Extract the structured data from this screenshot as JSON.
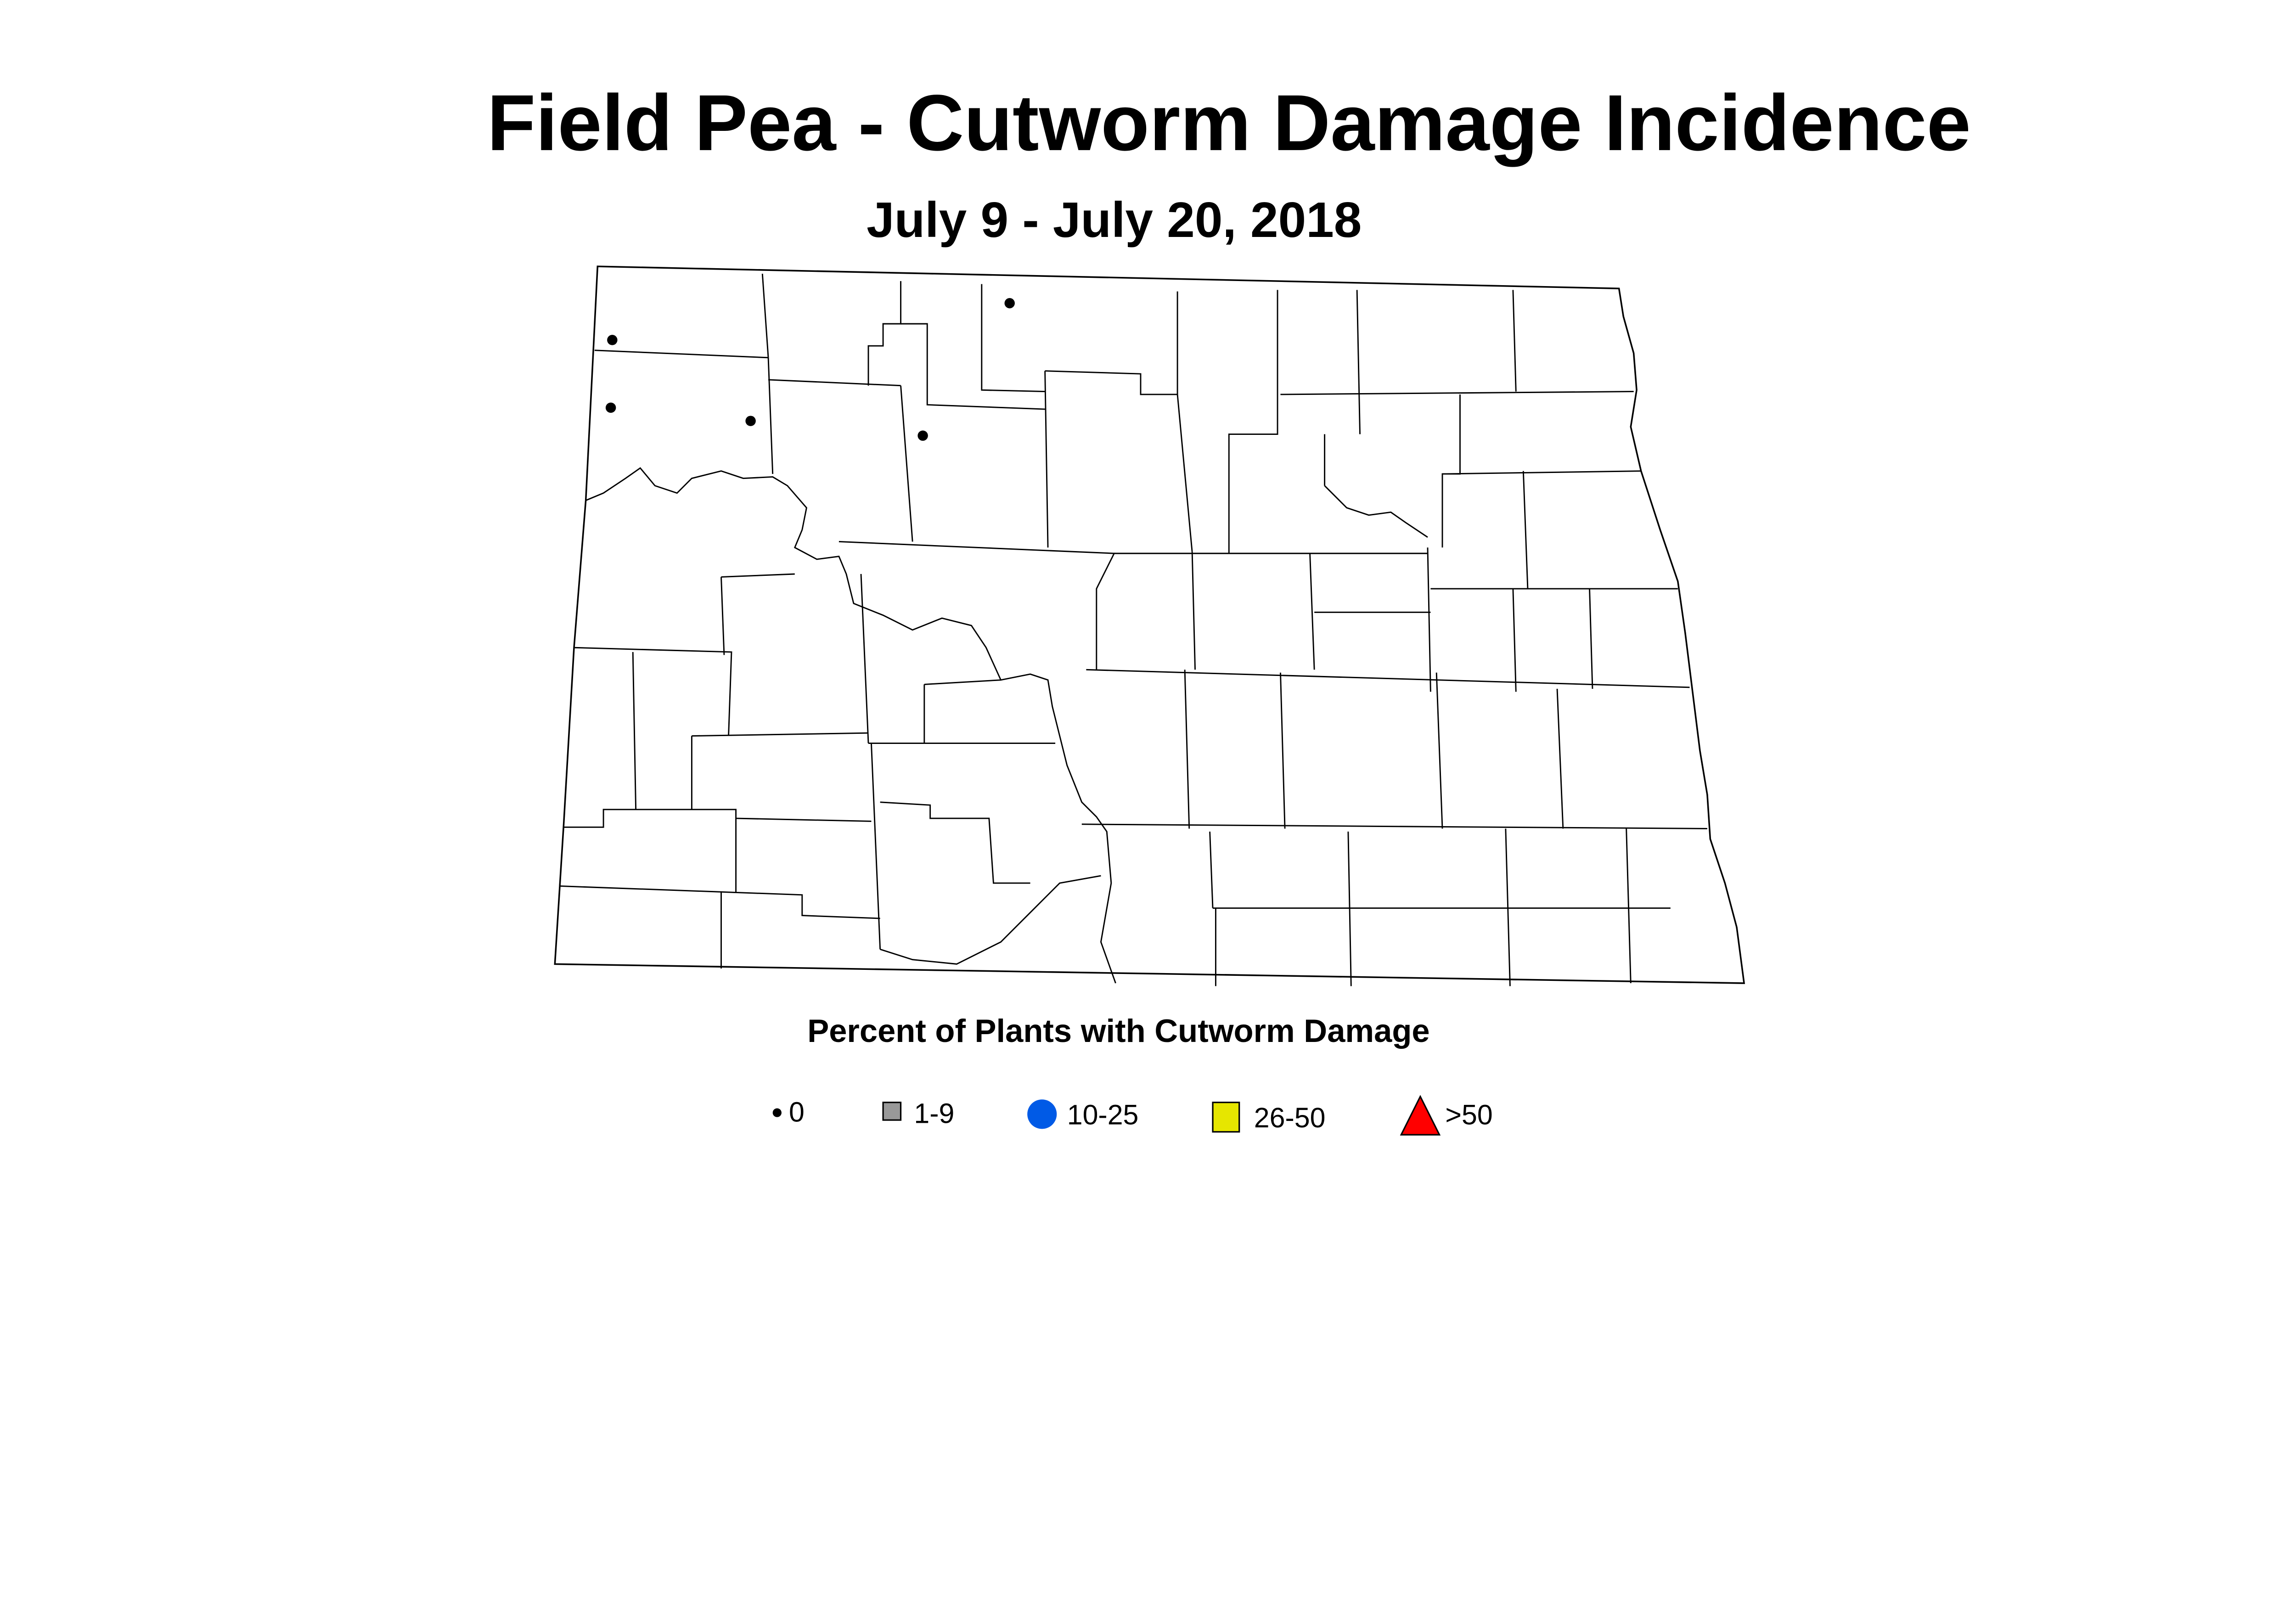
{
  "title": "Field Pea - Cutworm Damage Incidence",
  "subtitle": "July 9 - July 20, 2018",
  "legend": {
    "title": "Percent of Plants with Cutworm Damage",
    "items": [
      {
        "label": "0",
        "shape": "dot",
        "color": "#000000"
      },
      {
        "label": "1-9",
        "shape": "square",
        "color": "#999999"
      },
      {
        "label": "10-25",
        "shape": "circle",
        "color": "#005AE6"
      },
      {
        "label": "26-50",
        "shape": "square",
        "color": "#E6E600"
      },
      {
        "label": ">50",
        "shape": "triangle",
        "color": "#FF0000"
      }
    ]
  },
  "observations": {
    "category": "0",
    "count": 5
  }
}
